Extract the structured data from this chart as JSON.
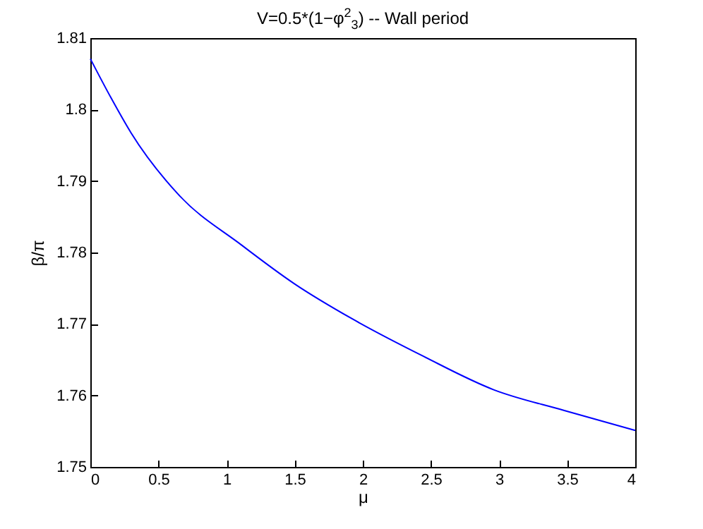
{
  "chart_data": {
    "type": "line",
    "title": "V=0.5*(1−φ$^{2}$$_{3}$) -- Wall period",
    "xlabel": "μ",
    "ylabel": "β/π",
    "x": [
      0,
      0.15,
      0.3,
      0.647,
      1.113,
      1.5,
      1.924,
      2.443,
      2.961,
      3.479,
      4
    ],
    "series": [
      {
        "color": "#0000ff",
        "values": [
          1.8071,
          1.8017,
          1.7967,
          1.7881,
          1.781,
          1.7756,
          1.7707,
          1.7655,
          1.7608,
          1.7579,
          1.7551
        ]
      }
    ],
    "xlim": [
      0,
      4
    ],
    "xticks": [
      0,
      0.5,
      1,
      1.5,
      2,
      2.5,
      3,
      3.5,
      4
    ],
    "ylim": [
      1.75,
      1.81
    ],
    "yticks": [
      1.75,
      1.76,
      1.77,
      1.78,
      1.79,
      1.8,
      1.81
    ],
    "grid": false,
    "legend": false,
    "marker": "none",
    "line_style": "solid"
  }
}
